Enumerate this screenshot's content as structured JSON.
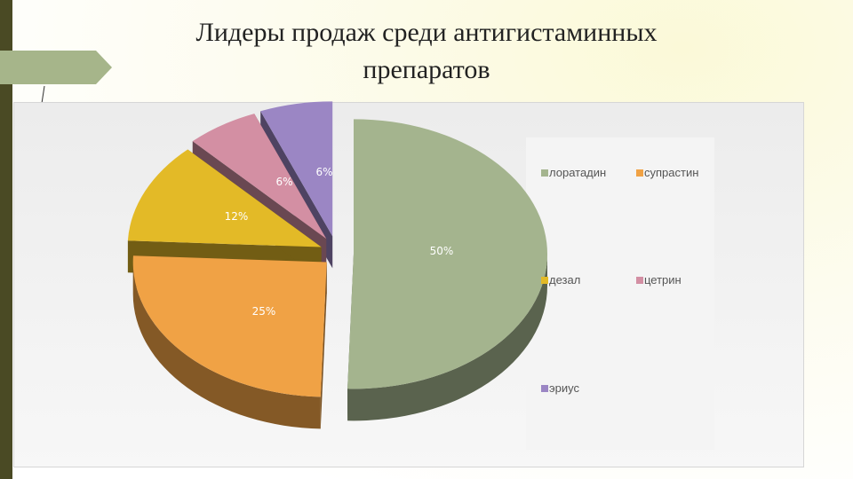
{
  "slide": {
    "title_line1": "Лидеры продаж среди антигистаминных",
    "title_line2": "препаратов"
  },
  "colors": {
    "loratadin": "#a4b48e",
    "suprastin": "#f0a245",
    "dezal": "#e3ba27",
    "cetrin": "#d38fa3",
    "erius": "#9b86c4"
  },
  "chart_data": {
    "type": "pie",
    "style": "3d-exploded",
    "title": "",
    "series": [
      {
        "label": "лоратадин",
        "percent": 50,
        "value_label": "50%"
      },
      {
        "label": "супрастин",
        "percent": 25,
        "value_label": "25%"
      },
      {
        "label": "дезал",
        "percent": 12,
        "value_label": "12%"
      },
      {
        "label": "цетрин",
        "percent": 6,
        "value_label": "6%"
      },
      {
        "label": "эриус",
        "percent": 6,
        "value_label": "6%"
      }
    ],
    "legend_position": "right"
  }
}
